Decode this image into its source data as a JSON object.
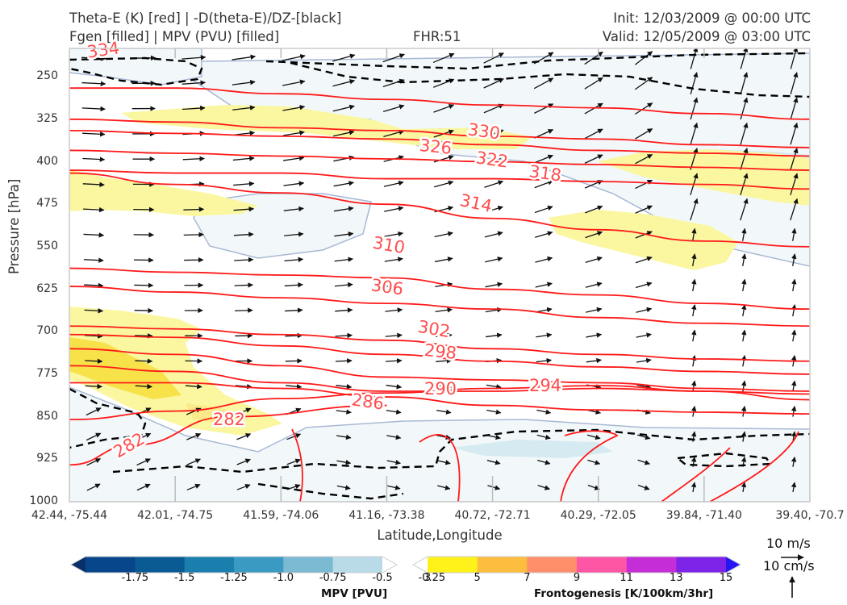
{
  "header": {
    "title_line1": "Theta-E (K) [red] | -D(theta-E)/DZ-[black]",
    "title_line2": "Fgen [filled] | MPV (PVU) [filled]",
    "fhr": "FHR:51",
    "init": "Init: 12/03/2009 @ 00:00 UTC",
    "valid": "Valid: 12/05/2009 @ 03:00 UTC"
  },
  "colors": {
    "theta_e": "#ff1a1a",
    "stability": "#000000",
    "mpv_light": "#f2f8fa",
    "mpv_medium": "#d6eaf1",
    "fgen_light": "#faf7a0",
    "fgen_medium": "#f8e24a",
    "frame": "#cccccc"
  },
  "chart_data": {
    "type": "contour",
    "xlabel": "Latitude,Longitude",
    "ylabel": "Pressure [hPa]",
    "ylim": [
      1000,
      200
    ],
    "y_ticks": [
      250,
      325,
      400,
      475,
      550,
      625,
      700,
      775,
      850,
      925,
      1000
    ],
    "x_ticks": [
      "42.44, -75.44",
      "42.01, -74.75",
      "41.59, -74.06",
      "41.16, -73.38",
      "40.72, -72.71",
      "40.29, -72.05",
      "39.84, -71.40",
      "39.40, -70.7"
    ],
    "theta_e_contours": [
      {
        "label": "282",
        "points": [
          [
            0,
            935
          ],
          [
            0.6,
            900
          ],
          [
            1.5,
            850
          ],
          [
            3,
            830
          ]
        ]
      },
      {
        "label": "282",
        "points": [
          [
            0,
            855
          ],
          [
            1,
            840
          ],
          [
            2,
            818
          ],
          [
            3,
            808
          ],
          [
            4,
            800
          ],
          [
            5,
            795
          ],
          [
            6,
            805
          ],
          [
            7,
            820
          ]
        ]
      },
      {
        "label": "286",
        "points": [
          [
            0,
            790
          ],
          [
            1,
            790
          ],
          [
            2,
            800
          ],
          [
            3,
            815
          ],
          [
            4,
            830
          ],
          [
            5,
            838
          ],
          [
            6,
            842
          ],
          [
            7,
            845
          ]
        ]
      },
      {
        "label": "290",
        "points": [
          [
            0,
            760
          ],
          [
            1,
            770
          ],
          [
            2,
            790
          ],
          [
            3,
            805
          ],
          [
            4,
            805
          ],
          [
            5,
            800
          ],
          [
            6,
            805
          ],
          [
            7,
            810
          ]
        ]
      },
      {
        "label": "294",
        "points": [
          [
            0,
            730
          ],
          [
            1,
            740
          ],
          [
            2,
            760
          ],
          [
            3,
            780
          ],
          [
            4,
            785
          ],
          [
            5,
            790
          ],
          [
            6,
            800
          ],
          [
            7,
            805
          ]
        ]
      },
      {
        "label": "298",
        "points": [
          [
            0,
            705
          ],
          [
            1,
            710
          ],
          [
            2,
            725
          ],
          [
            3,
            740
          ],
          [
            4,
            752
          ],
          [
            5,
            762
          ],
          [
            6,
            770
          ],
          [
            7,
            775
          ]
        ]
      },
      {
        "label": "302",
        "points": [
          [
            0,
            690
          ],
          [
            1,
            695
          ],
          [
            2,
            705
          ],
          [
            3,
            715
          ],
          [
            4,
            730
          ],
          [
            5,
            740
          ],
          [
            6,
            748
          ],
          [
            7,
            752
          ]
        ]
      },
      {
        "label": "306",
        "points": [
          [
            0,
            620
          ],
          [
            1,
            630
          ],
          [
            2,
            640
          ],
          [
            3,
            650
          ],
          [
            4,
            660
          ],
          [
            5,
            675
          ],
          [
            6,
            685
          ],
          [
            7,
            690
          ]
        ]
      },
      {
        "label": "310",
        "points": [
          [
            0,
            588
          ],
          [
            1,
            595
          ],
          [
            2,
            600
          ],
          [
            3,
            605
          ],
          [
            4,
            625
          ],
          [
            5,
            635
          ],
          [
            6,
            650
          ],
          [
            7,
            660
          ]
        ]
      },
      {
        "label": "314",
        "points": [
          [
            0,
            420
          ],
          [
            1,
            440
          ],
          [
            2,
            455
          ],
          [
            3,
            475
          ],
          [
            4,
            500
          ],
          [
            5,
            520
          ],
          [
            6,
            540
          ],
          [
            7,
            550
          ]
        ]
      },
      {
        "label": "318",
        "points": [
          [
            0,
            415
          ],
          [
            1,
            420
          ],
          [
            2,
            420
          ],
          [
            3,
            430
          ],
          [
            4,
            430
          ],
          [
            5,
            435
          ],
          [
            6,
            440
          ],
          [
            7,
            448
          ]
        ]
      },
      {
        "label": "322",
        "points": [
          [
            0,
            380
          ],
          [
            1,
            385
          ],
          [
            2,
            390
          ],
          [
            3,
            395
          ],
          [
            4,
            400
          ],
          [
            5,
            405
          ],
          [
            6,
            410
          ],
          [
            7,
            415
          ]
        ]
      },
      {
        "label": "326",
        "points": [
          [
            0,
            345
          ],
          [
            1,
            350
          ],
          [
            2,
            355
          ],
          [
            3,
            360
          ],
          [
            4,
            370
          ],
          [
            5,
            380
          ],
          [
            6,
            385
          ],
          [
            7,
            390
          ]
        ]
      },
      {
        "label": "330",
        "points": [
          [
            0,
            325
          ],
          [
            1,
            330
          ],
          [
            2,
            340
          ],
          [
            3,
            345
          ],
          [
            4,
            355
          ],
          [
            5,
            360
          ],
          [
            6,
            370
          ],
          [
            7,
            375
          ]
        ]
      },
      {
        "label": "334",
        "points": [
          [
            0,
            270
          ],
          [
            1,
            270
          ],
          [
            2,
            280
          ],
          [
            3,
            290
          ],
          [
            4,
            300
          ],
          [
            5,
            305
          ],
          [
            6,
            315
          ],
          [
            7,
            325
          ]
        ]
      }
    ],
    "wind_vectors_note": "",
    "scale_labels": [
      "10 m/s",
      "10 cm/s"
    ],
    "mpv_colorbar": {
      "title": "MPV [PVU]",
      "ticks": [
        "-1.75",
        "-1.5",
        "-1.25",
        "-1.0",
        "-0.75",
        "-0.5",
        "-0.25"
      ],
      "colors": [
        "#08306b",
        "#08468c",
        "#0a5a94",
        "#1b7fad",
        "#3a9ac1",
        "#7cb9d3",
        "#b9dbe7",
        "#ffffff"
      ]
    },
    "fgen_colorbar": {
      "title": "Frontogenesis [K/100km/3hr]",
      "ticks": [
        "3",
        "5",
        "7",
        "9",
        "11",
        "13",
        "15"
      ],
      "colors": [
        "#ffffff",
        "#fff21a",
        "#fdbe3f",
        "#ff8f6b",
        "#ff55a5",
        "#c52ed7",
        "#7e24e8",
        "#2517f2"
      ]
    }
  }
}
